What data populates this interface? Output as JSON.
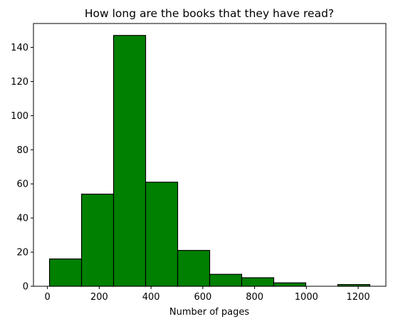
{
  "chart_data": {
    "type": "bar",
    "title": "How long are the books that they have read?",
    "xlabel": "Number of pages",
    "ylabel": "",
    "bins": [
      {
        "start": 8,
        "end": 131.7,
        "count": 16
      },
      {
        "start": 131.7,
        "end": 255.4,
        "count": 54
      },
      {
        "start": 255.4,
        "end": 379.1,
        "count": 147
      },
      {
        "start": 379.1,
        "end": 502.8,
        "count": 61
      },
      {
        "start": 502.8,
        "end": 626.5,
        "count": 21
      },
      {
        "start": 626.5,
        "end": 750.2,
        "count": 7
      },
      {
        "start": 750.2,
        "end": 873.9,
        "count": 5
      },
      {
        "start": 873.9,
        "end": 997.6,
        "count": 2
      },
      {
        "start": 997.6,
        "end": 1121.3,
        "count": 0
      },
      {
        "start": 1121.3,
        "end": 1245,
        "count": 1
      }
    ],
    "xlim": [
      -54,
      1307
    ],
    "ylim": [
      0,
      154
    ],
    "xticks": [
      0,
      200,
      400,
      600,
      800,
      1000,
      1200
    ],
    "yticks": [
      0,
      20,
      40,
      60,
      80,
      100,
      120,
      140
    ],
    "bar_color": "#008000",
    "edge_color": "#000000",
    "grid": false
  }
}
